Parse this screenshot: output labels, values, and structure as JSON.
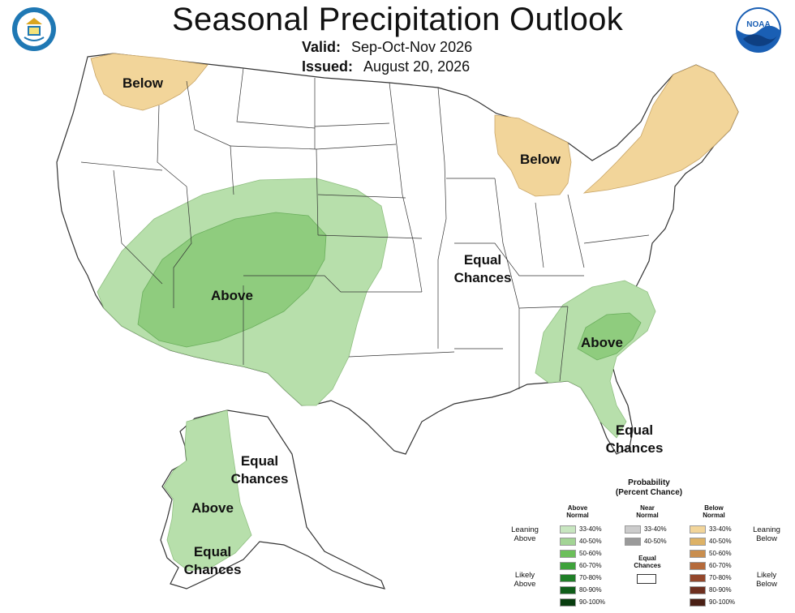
{
  "header": {
    "title": "Seasonal Precipitation Outlook",
    "valid_label": "Valid:",
    "valid_value": "Sep-Oct-Nov 2026",
    "issued_label": "Issued:",
    "issued_value": "August 20, 2026",
    "noaa_logo_text": "NOAA"
  },
  "map_labels": {
    "pacific_nw": "Below",
    "great_lakes": "Below",
    "southwest": "Above",
    "central_1": "Equal",
    "central_2": "Chances",
    "southeast": "Above",
    "florida_1": "Equal",
    "florida_2": "Chances",
    "alaska_ec_1": "Equal",
    "alaska_ec_2": "Chances",
    "alaska_above": "Above",
    "alaska_south_1": "Equal",
    "alaska_south_2": "Chances"
  },
  "legend": {
    "title_1": "Probability",
    "title_2": "(Percent Chance)",
    "above_head_1": "Above",
    "above_head_2": "Normal",
    "near_head_1": "Near",
    "near_head_2": "Normal",
    "below_head_1": "Below",
    "below_head_2": "Normal",
    "leaning_above_1": "Leaning",
    "leaning_above_2": "Above",
    "likely_above_1": "Likely",
    "likely_above_2": "Above",
    "leaning_below_1": "Leaning",
    "leaning_below_2": "Below",
    "likely_below_1": "Likely",
    "likely_below_2": "Below",
    "equal_1": "Equal",
    "equal_2": "Chances",
    "ranges": [
      "33-40%",
      "40-50%",
      "50-60%",
      "60-70%",
      "70-80%",
      "80-90%",
      "90-100%"
    ],
    "near_ranges": [
      "33-40%",
      "40-50%"
    ],
    "above_colors": [
      "#c8e6c0",
      "#a3d495",
      "#6cbf5a",
      "#3ea23a",
      "#1f7f27",
      "#105e1a",
      "#083d0f"
    ],
    "near_colors": [
      "#cccccc",
      "#9a9a9a"
    ],
    "below_colors": [
      "#f2d59a",
      "#ddb267",
      "#c98e4e",
      "#b56a3a",
      "#94472b",
      "#6e3020",
      "#4a2015"
    ]
  },
  "colors": {
    "above_light": "#b7dfab",
    "above_mid": "#8fcc7e",
    "above_dark": "#6cbf5a",
    "below_light": "#f2d59a",
    "state_line": "#333333"
  }
}
